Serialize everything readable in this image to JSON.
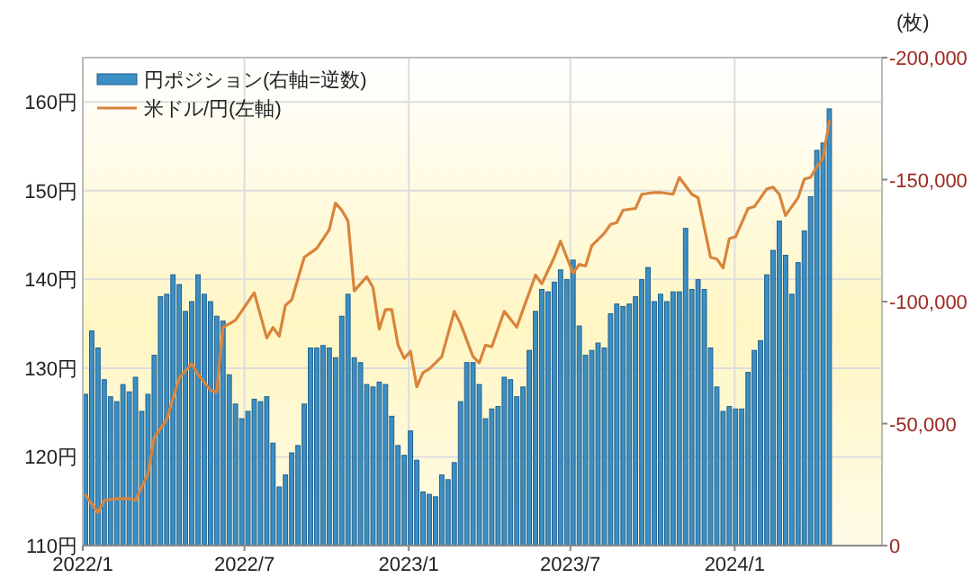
{
  "chart_data": {
    "type": "bar",
    "x": [
      "2022-01-04",
      "2022-01-11",
      "2022-01-18",
      "2022-01-25",
      "2022-02-01",
      "2022-02-08",
      "2022-02-15",
      "2022-02-22",
      "2022-03-01",
      "2022-03-08",
      "2022-03-15",
      "2022-03-22",
      "2022-03-29",
      "2022-04-05",
      "2022-04-12",
      "2022-04-19",
      "2022-04-26",
      "2022-05-03",
      "2022-05-10",
      "2022-05-17",
      "2022-05-24",
      "2022-05-31",
      "2022-06-07",
      "2022-06-14",
      "2022-06-21",
      "2022-06-28",
      "2022-07-05",
      "2022-07-12",
      "2022-07-19",
      "2022-07-26",
      "2022-08-02",
      "2022-08-09",
      "2022-08-16",
      "2022-08-23",
      "2022-08-30",
      "2022-09-06",
      "2022-09-13",
      "2022-09-20",
      "2022-09-27",
      "2022-10-04",
      "2022-10-11",
      "2022-10-18",
      "2022-10-25",
      "2022-11-01",
      "2022-11-08",
      "2022-11-15",
      "2022-11-22",
      "2022-11-29",
      "2022-12-06",
      "2022-12-13",
      "2022-12-20",
      "2022-12-27",
      "2023-01-03",
      "2023-01-10",
      "2023-01-17",
      "2023-01-24",
      "2023-01-31",
      "2023-02-07",
      "2023-02-14",
      "2023-02-21",
      "2023-02-28",
      "2023-03-07",
      "2023-03-14",
      "2023-03-21",
      "2023-03-28",
      "2023-04-04",
      "2023-04-11",
      "2023-04-18",
      "2023-04-25",
      "2023-05-02",
      "2023-05-09",
      "2023-05-16",
      "2023-05-23",
      "2023-05-30",
      "2023-06-06",
      "2023-06-13",
      "2023-06-20",
      "2023-06-27",
      "2023-07-04",
      "2023-07-11",
      "2023-07-18",
      "2023-07-25",
      "2023-08-01",
      "2023-08-08",
      "2023-08-15",
      "2023-08-22",
      "2023-08-29",
      "2023-09-05",
      "2023-09-12",
      "2023-09-19",
      "2023-09-26",
      "2023-10-03",
      "2023-10-10",
      "2023-10-17",
      "2023-10-24",
      "2023-10-31",
      "2023-11-07",
      "2023-11-14",
      "2023-11-21",
      "2023-11-28",
      "2023-12-05",
      "2023-12-12",
      "2023-12-19",
      "2023-12-26",
      "2024-01-02",
      "2024-01-09",
      "2024-01-16",
      "2024-01-23",
      "2024-01-30",
      "2024-02-06",
      "2024-02-13",
      "2024-02-20",
      "2024-02-27",
      "2024-03-05",
      "2024-03-12",
      "2024-03-19",
      "2024-03-26",
      "2024-04-02",
      "2024-04-09",
      "2024-04-16"
    ],
    "series": [
      {
        "name": "円ポジション(右軸=逆数)",
        "axis": "y2",
        "color": "#3b8fc4",
        "values": [
          -62000,
          -88000,
          -81000,
          -68000,
          -61000,
          -59000,
          -66000,
          -63000,
          -69000,
          -55000,
          -62000,
          -78000,
          -102000,
          -103000,
          -111000,
          -107000,
          -96000,
          -100000,
          -111000,
          -103000,
          -100000,
          -94000,
          -92000,
          -70000,
          -58000,
          -52000,
          -55000,
          -60000,
          -59000,
          -61000,
          -42000,
          -24000,
          -29000,
          -38000,
          -41000,
          -58000,
          -81000,
          -81000,
          -82000,
          -81000,
          -77000,
          -94000,
          -103000,
          -77000,
          -75000,
          -66000,
          -65000,
          -67000,
          -66000,
          -53000,
          -41000,
          -37000,
          -47000,
          -35000,
          -22000,
          -21000,
          -20000,
          -29000,
          -27000,
          -34000,
          -59000,
          -75000,
          -75000,
          -66000,
          -52000,
          -56000,
          -57000,
          -69000,
          -68000,
          -61000,
          -65000,
          -80000,
          -96000,
          -105000,
          -104000,
          -108000,
          -113000,
          -109000,
          -117000,
          -90000,
          -78000,
          -80000,
          -83000,
          -81000,
          -95000,
          -99000,
          -98000,
          -99000,
          -102000,
          -109000,
          -114000,
          -100000,
          -103000,
          -100000,
          -104000,
          -104000,
          -130000,
          -105000,
          -109000,
          -105000,
          -81000,
          -65000,
          -55000,
          -57000,
          -56000,
          -56000,
          -71000,
          -80000,
          -84000,
          -111000,
          -121000,
          -133000,
          -119000,
          -103000,
          -116000,
          -129000,
          -143000,
          -162000,
          -165000,
          -179000
        ]
      },
      {
        "name": "米ドル/円(左軸)",
        "type": "line",
        "color": "#d9843b",
        "x": [
          "2022-01-04",
          "2022-01-18",
          "2022-01-25",
          "2022-02-08",
          "2022-02-22",
          "2022-03-01",
          "2022-03-15",
          "2022-03-22",
          "2022-04-05",
          "2022-04-19",
          "2022-05-03",
          "2022-05-10",
          "2022-05-24",
          "2022-05-31",
          "2022-06-07",
          "2022-06-21",
          "2022-07-12",
          "2022-07-26",
          "2022-08-02",
          "2022-08-09",
          "2022-08-16",
          "2022-08-23",
          "2022-09-06",
          "2022-09-20",
          "2022-10-04",
          "2022-10-11",
          "2022-10-18",
          "2022-10-25",
          "2022-11-01",
          "2022-11-15",
          "2022-11-22",
          "2022-11-29",
          "2022-12-06",
          "2022-12-13",
          "2022-12-20",
          "2022-12-27",
          "2023-01-03",
          "2023-01-10",
          "2023-01-17",
          "2023-01-24",
          "2023-02-07",
          "2023-02-21",
          "2023-02-28",
          "2023-03-14",
          "2023-03-21",
          "2023-03-28",
          "2023-04-04",
          "2023-04-11",
          "2023-04-18",
          "2023-05-02",
          "2023-05-09",
          "2023-05-23",
          "2023-05-30",
          "2023-06-13",
          "2023-06-20",
          "2023-07-04",
          "2023-07-11",
          "2023-07-18",
          "2023-07-25",
          "2023-08-08",
          "2023-08-15",
          "2023-08-22",
          "2023-08-29",
          "2023-09-12",
          "2023-09-19",
          "2023-10-03",
          "2023-10-10",
          "2023-10-24",
          "2023-10-31",
          "2023-11-14",
          "2023-11-21",
          "2023-12-05",
          "2023-12-12",
          "2023-12-19",
          "2023-12-26",
          "2024-01-02",
          "2024-01-16",
          "2024-01-23",
          "2024-02-06",
          "2024-02-13",
          "2024-02-20",
          "2024-02-27",
          "2024-03-12",
          "2024-03-19",
          "2024-03-26",
          "2024-04-02",
          "2024-04-09",
          "2024-04-16"
        ],
        "values": [
          115.7,
          113.7,
          115.1,
          115.3,
          115.3,
          115.1,
          118.1,
          122.2,
          124.2,
          128.9,
          130.5,
          129.3,
          127.5,
          127.3,
          134.6,
          135.4,
          138.5,
          133.4,
          134.6,
          133.6,
          137.1,
          137.7,
          142.5,
          143.5,
          145.6,
          148.6,
          147.8,
          146.6,
          138.7,
          140.3,
          139.1,
          134.4,
          136.6,
          136.6,
          132.6,
          131.1,
          131.9,
          127.9,
          129.5,
          129.9,
          131.3,
          136.4,
          135.0,
          131.3,
          130.6,
          132.6,
          132.4,
          134.4,
          136.4,
          134.6,
          136.6,
          140.5,
          139.5,
          142.5,
          144.3,
          140.7,
          141.7,
          141.5,
          143.8,
          145.2,
          146.2,
          146.4,
          147.8,
          148.0,
          149.6,
          149.8,
          149.8,
          149.6,
          151.5,
          149.6,
          149.2,
          142.5,
          142.3,
          141.3,
          144.6,
          144.8,
          148.0,
          148.2,
          150.2,
          150.4,
          149.6,
          147.2,
          149.2,
          151.3,
          151.5,
          152.7,
          153.7,
          157.8
        ]
      }
    ],
    "xlim": [
      "2022-01-01",
      "2024-06-14"
    ],
    "xticks": [
      {
        "value": "2022-01-01",
        "label": "2022/1"
      },
      {
        "value": "2022-07-01",
        "label": "2022/7"
      },
      {
        "value": "2023-01-01",
        "label": "2023/1"
      },
      {
        "value": "2023-07-01",
        "label": "2023/7"
      },
      {
        "value": "2024-01-01",
        "label": "2024/1"
      }
    ],
    "ylim": [
      110,
      165
    ],
    "yticks": [
      {
        "value": 110,
        "label": "110円"
      },
      {
        "value": 120,
        "label": "120円"
      },
      {
        "value": 130,
        "label": "130円"
      },
      {
        "value": 140,
        "label": "140円"
      },
      {
        "value": 150,
        "label": "150円"
      },
      {
        "value": 160,
        "label": "160円"
      }
    ],
    "y2lim": [
      0,
      -200000
    ],
    "y2ticks": [
      0,
      {
        "value": -50000,
        "label": "-50,000"
      },
      {
        "value": -100000,
        "label": "-100,000"
      },
      {
        "value": -150000,
        "label": "-150,000"
      },
      {
        "value": -200000,
        "label": "-200,000"
      }
    ],
    "y2label": "(枚)",
    "grid": true,
    "legend": "top left"
  }
}
